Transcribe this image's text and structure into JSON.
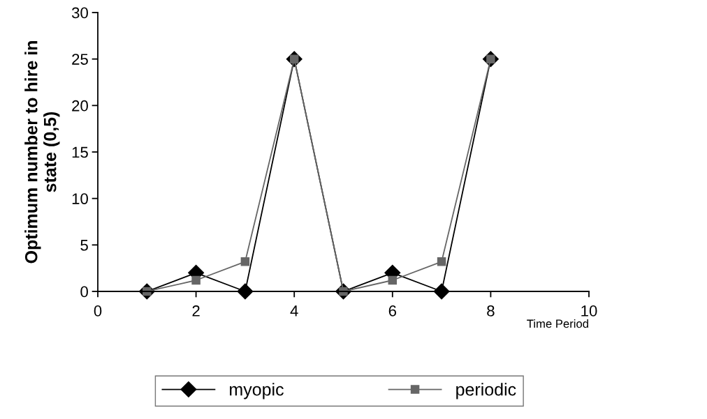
{
  "chart_data": {
    "type": "line",
    "xlabel": "Time Period",
    "ylabel": "Optimum number to hire in\nstate (0,5)",
    "x": [
      1,
      2,
      3,
      4,
      5,
      6,
      7,
      8
    ],
    "series": [
      {
        "name": "myopic",
        "color": "#000000",
        "marker": "diamond",
        "values": [
          0,
          2,
          0,
          25,
          0,
          2,
          0,
          25
        ]
      },
      {
        "name": "periodic",
        "color": "#666666",
        "marker": "square",
        "values": [
          0,
          1.2,
          3.2,
          25,
          0,
          1.2,
          3.2,
          25
        ]
      }
    ],
    "xlim": [
      0,
      10
    ],
    "xticks": [
      0,
      2,
      4,
      6,
      8,
      10
    ],
    "ylim": [
      0,
      30
    ],
    "yticks": [
      0,
      5,
      10,
      15,
      20,
      25,
      30
    ],
    "grid": false,
    "legend": "bottom",
    "line_style": "solid"
  }
}
